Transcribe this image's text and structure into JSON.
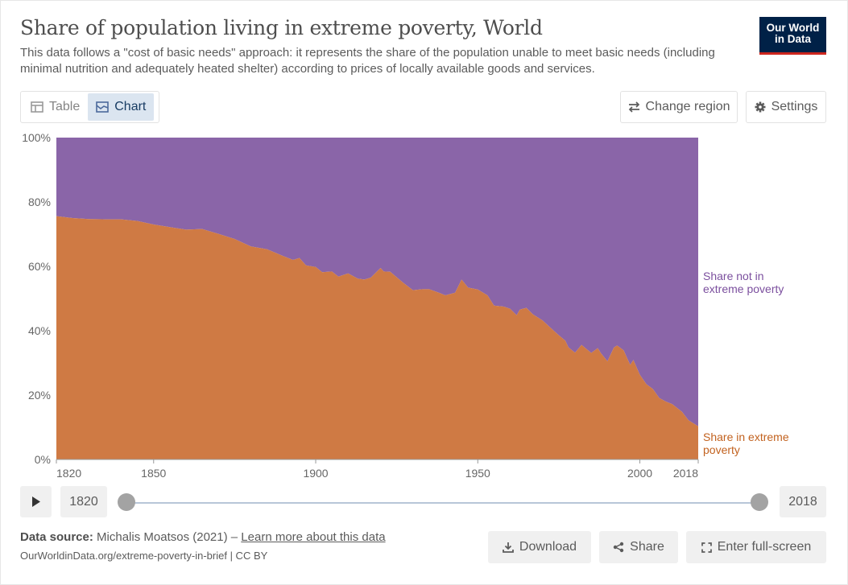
{
  "header": {
    "title": "Share of population living in extreme poverty, World",
    "subtitle": "This data follows a \"cost of basic needs\" approach: it represents the share of the population unable to meet basic needs (including minimal nutrition and adequately heated shelter) according to prices of locally available goods and services.",
    "logo_line1": "Our World",
    "logo_line2": "in Data"
  },
  "toolbar": {
    "tab_table": "Table",
    "tab_chart": "Chart",
    "change_region": "Change region",
    "settings": "Settings"
  },
  "timeline": {
    "start_year": "1820",
    "end_year": "2018"
  },
  "footer": {
    "source_label": "Data source:",
    "source_text": "Michalis Moatsos (2021) –",
    "learn_more": "Learn more about this data",
    "url": "OurWorldinData.org/extreme-poverty-in-brief | CC BY",
    "download": "Download",
    "share": "Share",
    "fullscreen": "Enter full-screen"
  },
  "colors": {
    "poverty": "#cf7a44",
    "not_poverty": "#8a65a8",
    "poverty_label": "#c2621f",
    "not_poverty_label": "#7b4f9e"
  },
  "icons": [
    "table-icon",
    "chart-icon",
    "swap-arrows-icon",
    "gear-icon",
    "play-icon",
    "download-icon",
    "share-icon",
    "fullscreen-icon"
  ],
  "chart_data": {
    "type": "area",
    "stacked": true,
    "ylim": [
      0,
      100
    ],
    "xlim": [
      1820,
      2018
    ],
    "y_ticks": [
      "0%",
      "20%",
      "40%",
      "60%",
      "80%",
      "100%"
    ],
    "x_ticks": [
      "1820",
      "1850",
      "1900",
      "1950",
      "2000",
      "2018"
    ],
    "x": [
      1820,
      1825,
      1830,
      1835,
      1840,
      1845,
      1850,
      1855,
      1860,
      1865,
      1870,
      1875,
      1880,
      1885,
      1890,
      1893,
      1895,
      1897,
      1900,
      1902,
      1905,
      1907,
      1910,
      1913,
      1915,
      1917,
      1920,
      1921,
      1923,
      1925,
      1927,
      1930,
      1933,
      1935,
      1938,
      1940,
      1943,
      1945,
      1947,
      1950,
      1953,
      1955,
      1958,
      1960,
      1962,
      1963,
      1965,
      1967,
      1970,
      1973,
      1975,
      1977,
      1978,
      1980,
      1982,
      1985,
      1987,
      1988,
      1990,
      1992,
      1993,
      1995,
      1997,
      1998,
      2000,
      2002,
      2004,
      2006,
      2008,
      2010,
      2013,
      2015,
      2018
    ],
    "series": [
      {
        "name": "Share in extreme poverty",
        "values": [
          75.6,
          75.0,
          74.7,
          74.6,
          74.6,
          74.1,
          73.0,
          72.2,
          71.4,
          71.6,
          70.1,
          68.5,
          66.2,
          65.3,
          63.2,
          62.0,
          62.6,
          60.3,
          59.8,
          58.2,
          58.4,
          56.8,
          57.8,
          56.2,
          55.9,
          56.5,
          59.5,
          58.4,
          58.3,
          56.6,
          54.9,
          52.6,
          52.9,
          52.9,
          51.8,
          51.0,
          51.8,
          55.9,
          53.4,
          52.8,
          51.0,
          47.8,
          47.5,
          46.8,
          44.8,
          46.6,
          47.1,
          45.1,
          43.2,
          40.4,
          38.6,
          36.9,
          34.8,
          33.2,
          35.6,
          33.1,
          34.6,
          33.0,
          30.5,
          34.8,
          35.4,
          33.9,
          29.4,
          30.9,
          26.3,
          23.4,
          21.9,
          19.1,
          18.0,
          17.2,
          14.8,
          12.2,
          10.3
        ]
      },
      {
        "name": "Share not in extreme poverty",
        "values": [
          24.4,
          25.0,
          25.3,
          25.4,
          25.4,
          25.9,
          27.0,
          27.8,
          28.6,
          28.4,
          29.9,
          31.5,
          33.8,
          34.7,
          36.8,
          38.0,
          37.4,
          39.7,
          40.2,
          41.8,
          41.6,
          43.2,
          42.2,
          43.8,
          44.1,
          43.5,
          40.5,
          41.6,
          41.7,
          43.4,
          45.1,
          47.4,
          47.1,
          47.1,
          48.2,
          49.0,
          48.2,
          44.1,
          46.6,
          47.2,
          49.0,
          52.2,
          52.5,
          53.2,
          55.2,
          53.4,
          52.9,
          54.9,
          56.8,
          59.6,
          61.4,
          63.1,
          65.2,
          66.8,
          64.4,
          66.9,
          65.4,
          67.0,
          69.5,
          65.2,
          64.6,
          66.1,
          70.6,
          69.1,
          73.7,
          76.6,
          78.1,
          80.9,
          82.0,
          82.8,
          85.2,
          87.8,
          89.7
        ]
      }
    ],
    "series_labels": {
      "poverty": [
        "Share in extreme",
        "poverty"
      ],
      "not_poverty": [
        "Share not in",
        "extreme poverty"
      ]
    }
  }
}
